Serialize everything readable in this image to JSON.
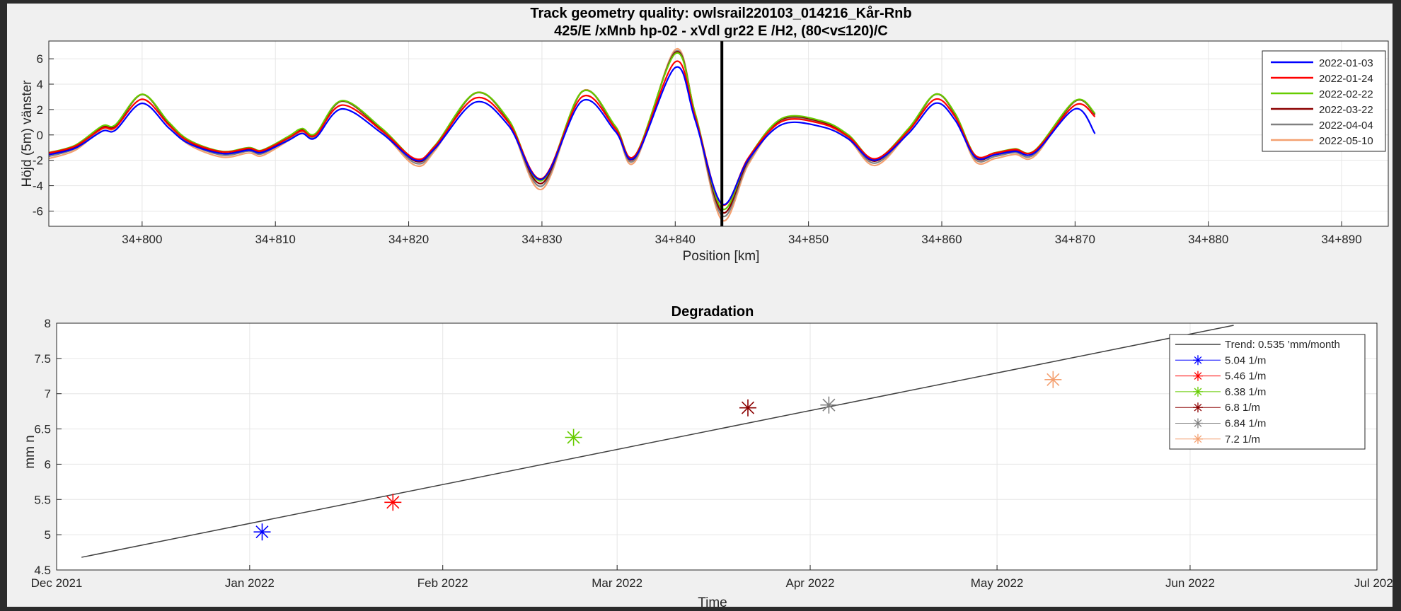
{
  "chart_data": [
    {
      "type": "line",
      "title": "Track geometry quality: owlsrail220103_014216_Kår-Rnb",
      "subtitle": "425/E /xMnb hp-02 - xVdl gr22 E /H2, (80<v≤120)/C",
      "xlabel": "Position [km]",
      "ylabel": "Höjd (5m) vänster",
      "xlim": [
        34793,
        34893.5
      ],
      "ylim": [
        -7.2,
        7.4
      ],
      "grid": true,
      "legend_position": "top-right",
      "x_ticks": [
        {
          "value": 34800,
          "label": "34+800"
        },
        {
          "value": 34810,
          "label": "34+810"
        },
        {
          "value": 34820,
          "label": "34+820"
        },
        {
          "value": 34830,
          "label": "34+830"
        },
        {
          "value": 34840,
          "label": "34+840"
        },
        {
          "value": 34850,
          "label": "34+850"
        },
        {
          "value": 34860,
          "label": "34+860"
        },
        {
          "value": 34870,
          "label": "34+870"
        },
        {
          "value": 34880,
          "label": "34+880"
        },
        {
          "value": 34890,
          "label": "34+890"
        }
      ],
      "y_ticks": [
        {
          "value": 6,
          "label": "6"
        },
        {
          "value": 4,
          "label": "4"
        },
        {
          "value": 2,
          "label": "2"
        },
        {
          "value": 0,
          "label": "0"
        },
        {
          "value": -2,
          "label": "-2"
        },
        {
          "value": -4,
          "label": "-4"
        },
        {
          "value": -6,
          "label": "-6"
        }
      ],
      "marker_line_x": 34843.5,
      "x": [
        34793,
        34795,
        34797,
        34798,
        34800,
        34802,
        34803.5,
        34806,
        34808,
        34809,
        34811,
        34812,
        34813,
        34815,
        34818,
        34820.5,
        34822,
        34825,
        34827.5,
        34830,
        34833,
        34835.5,
        34837,
        34840,
        34841.5,
        34843.5,
        34845.5,
        34848,
        34851,
        34853,
        34855,
        34857.5,
        34859.5,
        34861,
        34862.5,
        34864,
        34865.5,
        34867,
        34870,
        34871.5
      ],
      "base_values": [
        -1.6,
        -1.0,
        0.5,
        0.6,
        3.0,
        0.8,
        -0.6,
        -1.5,
        -1.2,
        -1.4,
        -0.3,
        0.3,
        -0.1,
        2.5,
        0.3,
        -2.1,
        -1.0,
        3.1,
        1.0,
        -3.8,
        3.2,
        0.5,
        -1.8,
        6.2,
        1.5,
        -6.0,
        -2.0,
        1.1,
        0.9,
        -0.2,
        -2.1,
        0.3,
        3.0,
        1.5,
        -1.8,
        -1.6,
        -1.3,
        -1.4,
        2.5,
        1.5
      ],
      "series": [
        {
          "name": "2022-01-03",
          "color": "#0000ff",
          "offset": -0.15,
          "scale": 0.88,
          "end_value": 0.1
        },
        {
          "name": "2022-01-24",
          "color": "#ff0000",
          "offset": 0.05,
          "scale": 0.92
        },
        {
          "name": "2022-02-22",
          "color": "#66cc00",
          "offset": 0.2,
          "scale": 1.0
        },
        {
          "name": "2022-03-22",
          "color": "#8b0000",
          "offset": 0.1,
          "scale": 1.03
        },
        {
          "name": "2022-04-04",
          "color": "#808080",
          "offset": 0.0,
          "scale": 1.06
        },
        {
          "name": "2022-05-10",
          "color": "#f4a070",
          "offset": -0.1,
          "scale": 1.1
        }
      ]
    },
    {
      "type": "scatter",
      "title": "Degradation",
      "xlabel": "Time",
      "ylabel": "mm n",
      "xlim": [
        "2021-12-01",
        "2022-07-01"
      ],
      "ylim": [
        4.5,
        8
      ],
      "grid": true,
      "legend_position": "top-right",
      "x_ticks": [
        {
          "value": "2021-12-01",
          "label": "Dec 2021"
        },
        {
          "value": "2022-01-01",
          "label": "Jan 2022"
        },
        {
          "value": "2022-02-01",
          "label": "Feb 2022"
        },
        {
          "value": "2022-03-01",
          "label": "Mar 2022"
        },
        {
          "value": "2022-04-01",
          "label": "Apr 2022"
        },
        {
          "value": "2022-05-01",
          "label": "May 2022"
        },
        {
          "value": "2022-06-01",
          "label": "Jun 2022"
        },
        {
          "value": "2022-07-01",
          "label": "Jul 2022"
        }
      ],
      "y_ticks": [
        {
          "value": 8,
          "label": "8"
        },
        {
          "value": 7.5,
          "label": "7.5"
        },
        {
          "value": 7,
          "label": "7"
        },
        {
          "value": 6.5,
          "label": "6.5"
        },
        {
          "value": 6,
          "label": "6"
        },
        {
          "value": 5.5,
          "label": "5.5"
        },
        {
          "value": 5,
          "label": "5"
        },
        {
          "value": 4.5,
          "label": "4.5"
        }
      ],
      "trend": {
        "label": "Trend: 0.535 ’mm/month",
        "color": "#404040",
        "start": {
          "date": "2021-12-05",
          "value": 4.68
        },
        "end": {
          "date": "2022-06-08",
          "value": 7.97
        }
      },
      "points": [
        {
          "date": "2022-01-03",
          "value": 5.04,
          "label": "5.04 1/m",
          "color": "#0000ff"
        },
        {
          "date": "2022-01-24",
          "value": 5.46,
          "label": "5.46 1/m",
          "color": "#ff0000"
        },
        {
          "date": "2022-02-22",
          "value": 6.38,
          "label": "6.38 1/m",
          "color": "#66cc00"
        },
        {
          "date": "2022-03-22",
          "value": 6.8,
          "label": "6.8 1/m",
          "color": "#8b0000"
        },
        {
          "date": "2022-04-04",
          "value": 6.84,
          "label": "6.84 1/m",
          "color": "#808080"
        },
        {
          "date": "2022-05-10",
          "value": 7.2,
          "label": "7.2 1/m",
          "color": "#f4a070"
        }
      ]
    }
  ]
}
